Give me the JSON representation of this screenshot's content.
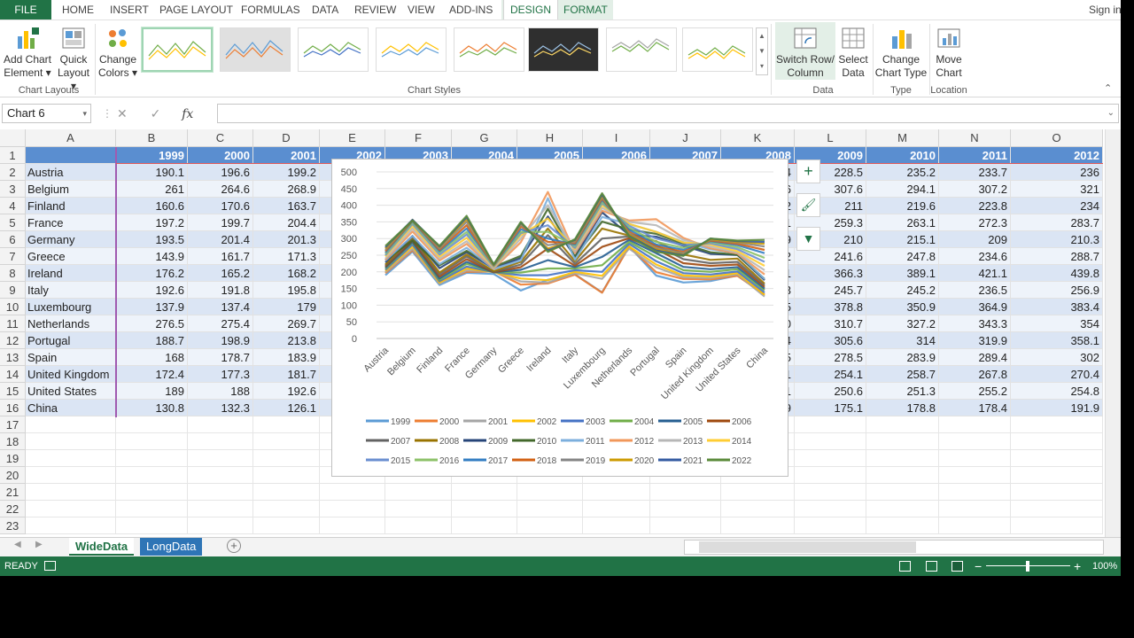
{
  "tabs": {
    "file": "FILE",
    "items": [
      "HOME",
      "INSERT",
      "PAGE LAYOUT",
      "FORMULAS",
      "DATA",
      "REVIEW",
      "VIEW",
      "ADD-INS"
    ],
    "context": [
      "DESIGN",
      "FORMAT"
    ],
    "signin": "Sign in"
  },
  "ribbon": {
    "add_chart_element": [
      "Add Chart",
      "Element"
    ],
    "quick_layout": [
      "Quick",
      "Layout"
    ],
    "change_colors": [
      "Change",
      "Colors"
    ],
    "switch_row_column": [
      "Switch Row/",
      "Column"
    ],
    "select_data": [
      "Select",
      "Data"
    ],
    "change_chart_type": [
      "Change",
      "Chart Type"
    ],
    "move_chart": [
      "Move",
      "Chart"
    ],
    "groups": {
      "layouts": "Chart Layouts",
      "styles": "Chart Styles",
      "data": "Data",
      "type": "Type",
      "location": "Location"
    }
  },
  "formula_bar": {
    "name_box": "Chart 6",
    "fx": "fx"
  },
  "columns": [
    "A",
    "B",
    "C",
    "D",
    "E",
    "F",
    "G",
    "H",
    "I",
    "J",
    "K",
    "L",
    "M",
    "N",
    "O"
  ],
  "years": [
    "1999",
    "2000",
    "2001",
    "2002",
    "2003",
    "2004",
    "2005",
    "2006",
    "2007",
    "2008",
    "2009",
    "2010",
    "2011",
    "2012"
  ],
  "visible_cols": {
    "B": [
      "190.1",
      "261",
      "160.6",
      "197.2",
      "193.5",
      "143.9",
      "176.2",
      "192.6",
      "137.9",
      "276.5",
      "188.7",
      "168",
      "172.4",
      "189",
      "130.8"
    ],
    "C": [
      "196.6",
      "264.6",
      "170.6",
      "199.7",
      "201.4",
      "161.7",
      "165.2",
      "191.8",
      "137.4",
      "275.4",
      "198.9",
      "178.7",
      "177.3",
      "188",
      "132.3"
    ],
    "D": [
      "199.2",
      "268.9",
      "163.7",
      "204.4",
      "201.3",
      "171.3",
      "168.2",
      "195.8",
      "179",
      "269.7",
      "213.8",
      "183.9",
      "181.7",
      "192.6",
      "126.1"
    ],
    "K": [
      "4",
      "6",
      "2",
      "1",
      "9",
      "2",
      "1",
      "3",
      "5",
      "0",
      "4",
      "5",
      "1",
      "1",
      "9"
    ],
    "L": [
      "228.5",
      "307.6",
      "211",
      "259.3",
      "210",
      "241.6",
      "366.3",
      "245.7",
      "378.8",
      "310.7",
      "305.6",
      "278.5",
      "254.1",
      "250.6",
      "175.1"
    ],
    "M": [
      "235.2",
      "294.1",
      "219.6",
      "263.1",
      "215.1",
      "247.8",
      "389.1",
      "245.2",
      "350.9",
      "327.2",
      "314",
      "283.9",
      "258.7",
      "251.3",
      "178.8"
    ],
    "N": [
      "233.7",
      "307.2",
      "223.8",
      "272.3",
      "209",
      "234.6",
      "421.1",
      "236.5",
      "364.9",
      "343.3",
      "319.9",
      "289.4",
      "267.8",
      "255.2",
      "178.4"
    ],
    "O": [
      "236",
      "321",
      "234",
      "283.7",
      "210.3",
      "288.7",
      "439.8",
      "256.9",
      "383.4",
      "354",
      "358.1",
      "302",
      "270.4",
      "254.8",
      "191.9"
    ]
  },
  "countries": [
    "Austria",
    "Belgium",
    "Finland",
    "France",
    "Germany",
    "Greece",
    "Ireland",
    "Italy",
    "Luxembourg",
    "Netherlands",
    "Portugal",
    "Spain",
    "United Kingdom",
    "United States",
    "China"
  ],
  "row_numbers": [
    "1",
    "2",
    "3",
    "4",
    "5",
    "6",
    "7",
    "8",
    "9",
    "10",
    "11",
    "12",
    "13",
    "14",
    "15",
    "16",
    "17",
    "18",
    "19",
    "20",
    "21",
    "22",
    "23"
  ],
  "chart_data": {
    "type": "line",
    "categories": [
      "Austria",
      "Belgium",
      "Finland",
      "France",
      "Germany",
      "Greece",
      "Ireland",
      "Italy",
      "Luxembourg",
      "Netherlands",
      "Portugal",
      "Spain",
      "United Kingdom",
      "United States",
      "China"
    ],
    "ylim": [
      0,
      500
    ],
    "yticks": [
      "0",
      "50",
      "100",
      "150",
      "200",
      "250",
      "300",
      "350",
      "400",
      "450",
      "500"
    ],
    "legend_position": "bottom",
    "series": [
      {
        "name": "1999",
        "color": "#5b9bd5",
        "values": [
          190.1,
          261,
          160.6,
          197.2,
          193.5,
          143.9,
          176.2,
          192.6,
          137.9,
          276.5,
          188.7,
          168,
          172.4,
          189,
          130.8
        ]
      },
      {
        "name": "2000",
        "color": "#ed7d31",
        "values": [
          196.6,
          264.6,
          170.6,
          199.7,
          201.4,
          161.7,
          165.2,
          191.8,
          137.4,
          275.4,
          198.9,
          178.7,
          177.3,
          188,
          132.3
        ]
      },
      {
        "name": "2001",
        "color": "#a5a5a5",
        "values": [
          199.2,
          268.9,
          163.7,
          204.4,
          201.3,
          171.3,
          168.2,
          195.8,
          179,
          269.7,
          213.8,
          183.9,
          181.7,
          192.6,
          126.1
        ]
      },
      {
        "name": "2002",
        "color": "#ffc000",
        "values": [
          203,
          276,
          168,
          210,
          199,
          180,
          175,
          200,
          188,
          276,
          222,
          189,
          186,
          196,
          131
        ]
      },
      {
        "name": "2003",
        "color": "#4472c4",
        "values": [
          206,
          282,
          172,
          216,
          199,
          190,
          190,
          205,
          200,
          284,
          232,
          196,
          192,
          201,
          138
        ]
      },
      {
        "name": "2004",
        "color": "#70ad47",
        "values": [
          210,
          288,
          176,
          224,
          199,
          198,
          210,
          210,
          220,
          290,
          245,
          205,
          200,
          208,
          145
        ]
      },
      {
        "name": "2005",
        "color": "#255e91",
        "values": [
          213,
          290,
          180,
          230,
          199,
          206,
          235,
          214,
          245,
          296,
          256,
          215,
          208,
          214,
          150
        ]
      },
      {
        "name": "2006",
        "color": "#9e480e",
        "values": [
          216,
          294,
          186,
          238,
          199,
          214,
          270,
          218,
          275,
          301,
          268,
          226,
          218,
          222,
          155
        ]
      },
      {
        "name": "2007",
        "color": "#636363",
        "values": [
          219,
          300,
          192,
          246,
          200,
          222,
          310,
          224,
          300,
          306,
          280,
          238,
          226,
          230,
          160
        ]
      },
      {
        "name": "2008",
        "color": "#997300",
        "values": [
          222,
          304,
          198,
          252,
          202,
          230,
          330,
          232,
          330,
          309,
          292,
          252,
          236,
          240,
          165
        ]
      },
      {
        "name": "2009",
        "color": "#264478",
        "values": [
          228.5,
          307.6,
          211,
          259.3,
          210,
          241.6,
          366.3,
          245.7,
          378.8,
          310.7,
          305.6,
          278.5,
          254.1,
          250.6,
          175.1
        ]
      },
      {
        "name": "2010",
        "color": "#43682b",
        "values": [
          235.2,
          294.1,
          219.6,
          263.1,
          215.1,
          247.8,
          389.1,
          245.2,
          350.9,
          327.2,
          314,
          283.9,
          258.7,
          251.3,
          178.8
        ]
      },
      {
        "name": "2011",
        "color": "#7cafdd",
        "values": [
          233.7,
          307.2,
          223.8,
          272.3,
          209,
          234.6,
          421.1,
          236.5,
          364.9,
          343.3,
          319.9,
          289.4,
          267.8,
          255.2,
          178.4
        ]
      },
      {
        "name": "2012",
        "color": "#f1975a",
        "values": [
          236,
          321,
          234,
          283.7,
          210.3,
          288.7,
          439.8,
          256.9,
          383.4,
          354,
          358.1,
          302,
          270.4,
          254.8,
          191.9
        ]
      },
      {
        "name": "2013",
        "color": "#b7b7b7",
        "values": [
          240,
          330,
          240,
          292,
          212,
          300,
          400,
          262,
          392,
          350,
          340,
          296,
          276,
          258,
          205
        ]
      },
      {
        "name": "2014",
        "color": "#ffcd33",
        "values": [
          246,
          338,
          246,
          302,
          214,
          310,
          360,
          268,
          400,
          344,
          320,
          288,
          282,
          262,
          218
        ]
      },
      {
        "name": "2015",
        "color": "#698ed0",
        "values": [
          250,
          344,
          252,
          312,
          216,
          316,
          340,
          272,
          406,
          338,
          300,
          280,
          286,
          268,
          230
        ]
      },
      {
        "name": "2016",
        "color": "#8cc168",
        "values": [
          254,
          348,
          258,
          320,
          218,
          320,
          320,
          278,
          410,
          332,
          290,
          272,
          290,
          274,
          242
        ]
      },
      {
        "name": "2017",
        "color": "#327dc2",
        "values": [
          258,
          352,
          262,
          330,
          220,
          328,
          300,
          282,
          416,
          326,
          282,
          266,
          292,
          280,
          256
        ]
      },
      {
        "name": "2018",
        "color": "#d26012",
        "values": [
          262,
          354,
          266,
          340,
          220,
          336,
          290,
          286,
          420,
          320,
          276,
          260,
          294,
          284,
          266
        ]
      },
      {
        "name": "2019",
        "color": "#848484",
        "values": [
          266,
          356,
          270,
          350,
          222,
          342,
          280,
          290,
          424,
          316,
          272,
          256,
          296,
          288,
          276
        ]
      },
      {
        "name": "2020",
        "color": "#cc9a00",
        "values": [
          270,
          356,
          274,
          358,
          222,
          346,
          270,
          294,
          428,
          312,
          268,
          252,
          298,
          290,
          284
        ]
      },
      {
        "name": "2021",
        "color": "#335aa1",
        "values": [
          274,
          356,
          276,
          364,
          222,
          348,
          264,
          296,
          432,
          308,
          264,
          250,
          300,
          292,
          290
        ]
      },
      {
        "name": "2022",
        "color": "#5a8a39",
        "values": [
          278,
          354,
          278,
          368,
          222,
          350,
          260,
          298,
          436,
          306,
          260,
          248,
          300,
          294,
          296
        ]
      }
    ]
  },
  "sheets": [
    "WideData",
    "LongData"
  ],
  "status": {
    "ready": "READY",
    "zoom": "100%"
  },
  "colors": {
    "excel_green": "#217346",
    "header_blue": "#5a8ed0",
    "band_a": "#dbe5f4",
    "band_b": "#eef3fa"
  }
}
